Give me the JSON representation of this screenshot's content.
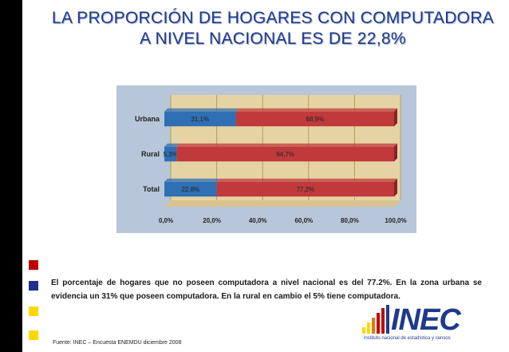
{
  "title": {
    "line1": "LA PROPORCIÓN DE HOGARES CON COMPUTADORA",
    "line2": "A NIVEL NACIONAL ES DE 22,8%"
  },
  "chart_data": {
    "type": "bar",
    "orientation": "horizontal",
    "stacked": true,
    "categories": [
      "Urbana",
      "Rural",
      "Total"
    ],
    "series": [
      {
        "values": [
          31.1,
          5.3,
          22.8
        ],
        "labels": [
          "31,1%",
          "5,3%",
          "22,8%"
        ],
        "color": "#2f6fb3"
      },
      {
        "values": [
          68.9,
          94.7,
          77.2
        ],
        "labels": [
          "68,9%",
          "94,7%",
          "77,2%"
        ],
        "color": "#c0393b"
      }
    ],
    "x_ticks": [
      "0,0%",
      "20,0%",
      "40,0%",
      "60,0%",
      "80,0%",
      "100,0%"
    ],
    "xlim": [
      0,
      100
    ],
    "grid": true,
    "background": "#b7c6d9",
    "wall_color": "#e6d3a3"
  },
  "description": "El porcentaje de hogares que no poseen computadora a nivel nacional es del 77.2%. En la zona urbana se evidencia un 31% que poseen computadora. En la rural en cambio el 5% tiene computadora.",
  "source": "Fuente: INEC – Encuesta ENEMDU diciembre 2008",
  "logo": {
    "name": "INEC",
    "tagline": "instituto nacional de estadística y censos"
  },
  "colors": {
    "title": "#1f3a8c",
    "left_strip": "#000000",
    "squares": [
      "#c00000",
      "#1f2e8c",
      "#ffd700",
      "#ffd700"
    ]
  }
}
